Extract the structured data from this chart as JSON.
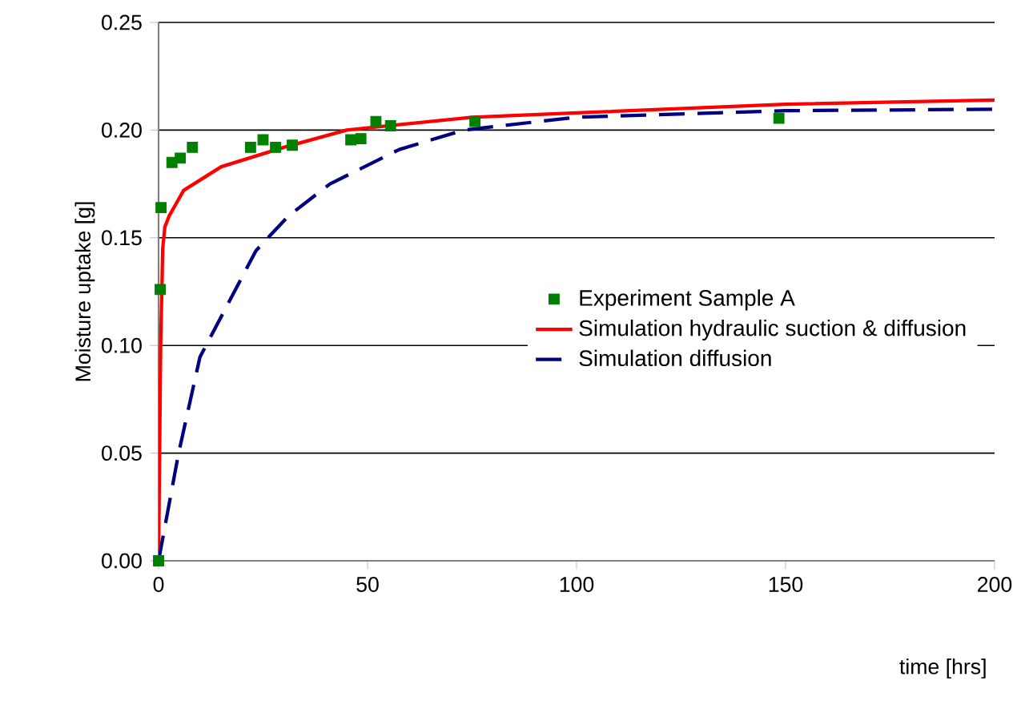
{
  "chart_data": {
    "type": "line",
    "xlabel": "time [hrs]",
    "ylabel": "Moisture uptake [g]",
    "xlim": [
      0,
      200
    ],
    "ylim": [
      0,
      0.25
    ],
    "xticks": [
      0,
      50,
      100,
      150,
      200
    ],
    "yticks": [
      {
        "value": 0,
        "label": "0.00"
      },
      {
        "value": 0.05,
        "label": "0.05"
      },
      {
        "value": 0.1,
        "label": "0.10"
      },
      {
        "value": 0.15,
        "label": "0.15"
      },
      {
        "value": 0.2,
        "label": "0.20"
      },
      {
        "value": 0.25,
        "label": "0.25"
      }
    ],
    "grid": "y",
    "legend": "right",
    "series": [
      {
        "name": "Experiment Sample A",
        "type": "scatter",
        "marker": "square",
        "color": "#008000",
        "x": [
          0,
          0.4,
          0.6,
          3.2,
          5.2,
          8.1,
          22,
          25,
          28,
          32,
          46,
          48.4,
          52,
          55.5,
          75.7,
          148.4
        ],
        "values": [
          0,
          0.126,
          0.164,
          0.185,
          0.187,
          0.192,
          0.192,
          0.1955,
          0.192,
          0.193,
          0.1955,
          0.196,
          0.204,
          0.202,
          0.204,
          0.2055
        ]
      },
      {
        "name": "Simulation hydraulic suction & diffusion",
        "line_style": "solid",
        "color": "#ff0000",
        "x": [
          0,
          0.5,
          1,
          1.5,
          2.5,
          6,
          15,
          30,
          45,
          75,
          100,
          150,
          200
        ],
        "values": [
          0,
          0.1,
          0.145,
          0.155,
          0.16,
          0.172,
          0.183,
          0.192,
          0.2,
          0.206,
          0.208,
          0.212,
          0.214
        ]
      },
      {
        "name": "Simulation diffusion",
        "line_style": "dashed",
        "color": "#000080",
        "x": [
          0,
          4.8,
          9.9,
          23.3,
          31,
          41,
          57.6,
          73,
          100,
          150,
          200
        ],
        "values": [
          0,
          0.05,
          0.0946,
          0.144,
          0.16,
          0.175,
          0.191,
          0.2,
          0.206,
          0.209,
          0.2097
        ]
      }
    ]
  }
}
